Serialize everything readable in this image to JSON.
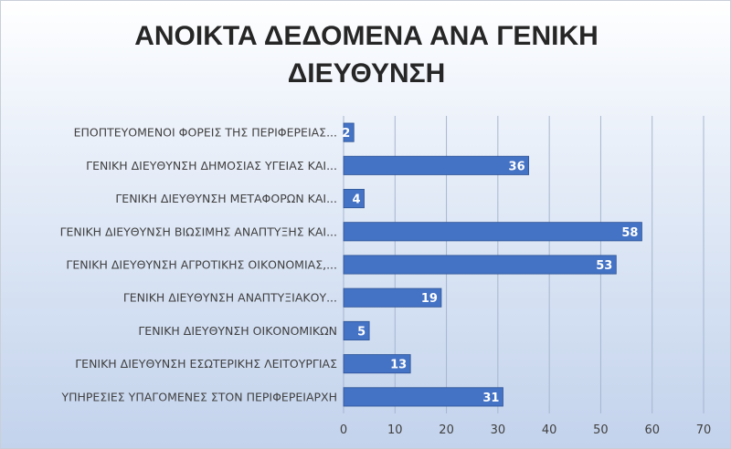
{
  "colors": {
    "bar": "#4472c4",
    "bar_edge": "#2f5597",
    "grid": "#a6b6cf",
    "text": "#404040",
    "title": "#262626",
    "data_label": "#ffffff"
  },
  "chart_data": {
    "type": "bar",
    "orientation": "horizontal",
    "title_lines": [
      "ΑΝΟΙΚΤΑ ΔΕΔΟΜΕΝΑ ΑΝΑ ΓΕΝΙΚΗ",
      "ΔΙΕΥΘΥΝΣΗ"
    ],
    "categories": [
      "ΕΠΟΠΤΕΥΟΜΕΝΟΙ ΦΟΡΕΙΣ ΤΗΣ ΠΕΡΙΦΕΡΕΙΑΣ...",
      "ΓΕΝΙΚΗ ΔΙΕΥΘΥΝΣΗ ΔΗΜΟΣΙΑΣ ΥΓΕΙΑΣ ΚΑΙ...",
      "ΓΕΝΙΚΗ ΔΙΕΥΘΥΝΣΗ ΜΕΤΑΦΟΡΩΝ ΚΑΙ...",
      "ΓΕΝΙΚΗ ΔΙΕΥΘΥΝΣΗ ΒΙΩΣΙΜΗΣ ΑΝΑΠΤΥΞΗΣ ΚΑΙ...",
      "ΓΕΝΙΚΗ ΔΙΕΥΘΥΝΣΗ ΑΓΡΟΤΙΚΗΣ ΟΙΚΟΝΟΜΙΑΣ,...",
      "ΓΕΝΙΚΗ ΔΙΕΥΘΥΝΣΗ ΑΝΑΠΤΥΞΙΑΚΟΥ...",
      "ΓΕΝΙΚΗ ΔΙΕΥΘΥΝΣΗ ΟΙΚΟΝΟΜΙΚΩΝ",
      "ΓΕΝΙΚΗ ΔΙΕΥΘΥΝΣΗ ΕΣΩΤΕΡΙΚΗΣ ΛΕΙΤΟΥΡΓΙΑΣ",
      "ΥΠΗΡΕΣΙΕΣ ΥΠΑΓΟΜΕΝΕΣ ΣΤΟΝ ΠΕΡΙΦΕΡΕΙΑΡΧΗ"
    ],
    "values": [
      2,
      36,
      4,
      58,
      53,
      19,
      5,
      13,
      31
    ],
    "xlim": [
      0,
      70
    ],
    "xticks": [
      0,
      10,
      20,
      30,
      40,
      50,
      60,
      70
    ],
    "grid": "vertical",
    "data_labels": true,
    "legend": false
  }
}
